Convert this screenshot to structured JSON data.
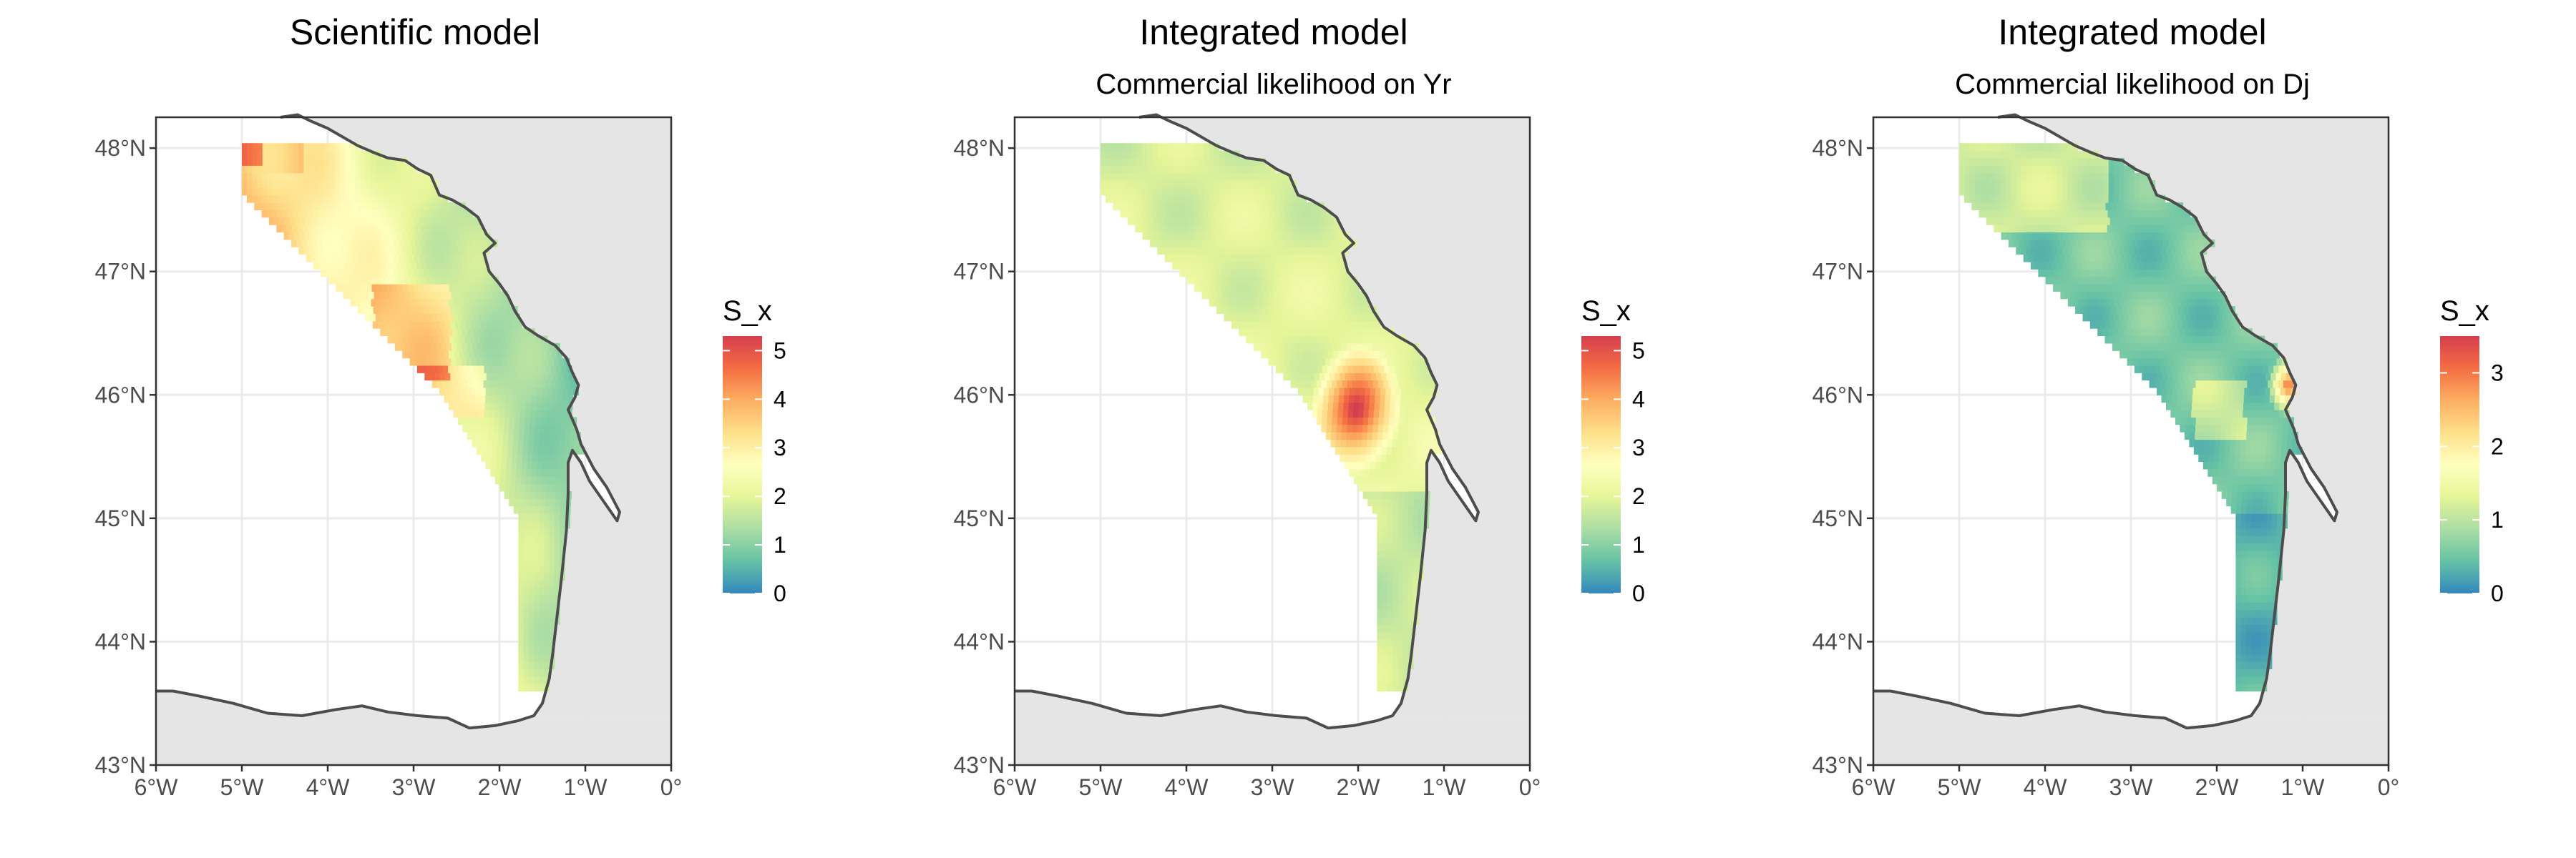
{
  "panels": [
    {
      "title": "Scientific model",
      "subtitle": "",
      "legend": {
        "title": "S_x",
        "ticks": [
          "0",
          "1",
          "2",
          "3",
          "4",
          "5"
        ],
        "max": 5.3
      }
    },
    {
      "title": "Integrated model",
      "subtitle": "Commercial likelihood on Yr",
      "legend": {
        "title": "S_x",
        "ticks": [
          "0",
          "1",
          "2",
          "3",
          "4",
          "5"
        ],
        "max": 5.3
      }
    },
    {
      "title": "Integrated model",
      "subtitle": "Commercial likelihood on Dj",
      "legend": {
        "title": "S_x",
        "ticks": [
          "0",
          "1",
          "2",
          "3"
        ],
        "max": 3.5
      }
    }
  ],
  "axes": {
    "x_ticks": [
      "6°W",
      "5°W",
      "4°W",
      "3°W",
      "2°W",
      "1°W",
      "0°"
    ],
    "y_ticks": [
      "43°N",
      "44°N",
      "45°N",
      "46°N",
      "47°N",
      "48°N"
    ],
    "lon_range": [
      -6,
      0
    ],
    "lat_range": [
      43,
      48.25
    ]
  },
  "colors": {
    "panel_background": "#ffffff",
    "land": "#e5e5e5",
    "coastline": "#4d4d4d",
    "grid": "#ebebeb",
    "scale": [
      "#3288bd",
      "#66c2a5",
      "#abdda4",
      "#e6f598",
      "#ffffbf",
      "#fee08b",
      "#fdae61",
      "#f46d43",
      "#d53e4f"
    ]
  }
}
